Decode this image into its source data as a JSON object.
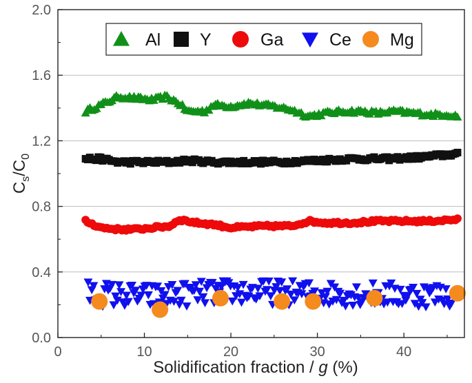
{
  "chart_data": {
    "type": "scatter",
    "title": "",
    "xlabel": {
      "prefix": "Solidification fraction / ",
      "var": "g",
      "suffix": " (%)"
    },
    "ylabel": {
      "main": "C",
      "sub1": "s",
      "sep": "/C",
      "sub2": "0"
    },
    "xlim": [
      0,
      47
    ],
    "ylim": [
      0,
      2.0
    ],
    "x_ticks": [
      0,
      10,
      20,
      30,
      40
    ],
    "y_ticks": [
      0.0,
      0.4,
      0.8,
      1.2,
      1.6,
      2.0
    ],
    "x_tick_labels": [
      "0",
      "10",
      "20",
      "30",
      "40"
    ],
    "y_tick_labels": [
      "0.0",
      "0.4",
      "0.8",
      "1.2",
      "1.6",
      "2.0"
    ],
    "grid": "horizontal",
    "legend_position": "top-center",
    "series": [
      {
        "name": "Al",
        "marker": "triangle-up",
        "color": "#109018",
        "x_start": 3.2,
        "x_end": 46.2,
        "n": 170,
        "profile": [
          [
            3.2,
            1.38
          ],
          [
            5,
            1.42
          ],
          [
            7,
            1.47
          ],
          [
            9,
            1.46
          ],
          [
            11,
            1.45
          ],
          [
            12.5,
            1.47
          ],
          [
            14,
            1.43
          ],
          [
            15,
            1.38
          ],
          [
            17,
            1.38
          ],
          [
            18,
            1.42
          ],
          [
            20,
            1.41
          ],
          [
            22,
            1.43
          ],
          [
            25,
            1.41
          ],
          [
            27,
            1.39
          ],
          [
            29,
            1.35
          ],
          [
            31,
            1.37
          ],
          [
            33,
            1.38
          ],
          [
            35,
            1.38
          ],
          [
            37,
            1.37
          ],
          [
            39,
            1.38
          ],
          [
            41,
            1.37
          ],
          [
            43,
            1.36
          ],
          [
            45,
            1.36
          ],
          [
            46.2,
            1.35
          ]
        ],
        "jitter": 0.012
      },
      {
        "name": "Y",
        "marker": "square",
        "color": "#111111",
        "x_start": 3.2,
        "x_end": 46.2,
        "n": 175,
        "profile": [
          [
            3.2,
            1.09
          ],
          [
            5,
            1.09
          ],
          [
            7,
            1.07
          ],
          [
            10,
            1.07
          ],
          [
            13,
            1.07
          ],
          [
            15,
            1.08
          ],
          [
            18,
            1.07
          ],
          [
            22,
            1.07
          ],
          [
            26,
            1.07
          ],
          [
            30,
            1.08
          ],
          [
            34,
            1.09
          ],
          [
            38,
            1.09
          ],
          [
            42,
            1.1
          ],
          [
            44,
            1.11
          ],
          [
            46.2,
            1.12
          ]
        ],
        "jitter": 0.011
      },
      {
        "name": "Ga",
        "marker": "circle",
        "color": "#ee0a0a",
        "x_start": 3.2,
        "x_end": 46.2,
        "n": 175,
        "profile": [
          [
            3.2,
            0.71
          ],
          [
            5,
            0.67
          ],
          [
            7,
            0.66
          ],
          [
            9,
            0.66
          ],
          [
            11,
            0.67
          ],
          [
            13,
            0.68
          ],
          [
            14,
            0.72
          ],
          [
            16,
            0.7
          ],
          [
            18,
            0.69
          ],
          [
            20,
            0.67
          ],
          [
            24,
            0.68
          ],
          [
            27,
            0.68
          ],
          [
            29,
            0.71
          ],
          [
            31,
            0.7
          ],
          [
            34,
            0.7
          ],
          [
            37,
            0.71
          ],
          [
            40,
            0.71
          ],
          [
            43,
            0.71
          ],
          [
            46.2,
            0.72
          ]
        ],
        "jitter": 0.008
      },
      {
        "name": "Ce",
        "marker": "triangle-down",
        "color": "#1010ee",
        "x_start": 3.5,
        "x_end": 45.5,
        "n": 200,
        "profile": [
          [
            3.5,
            0.27
          ],
          [
            10,
            0.25
          ],
          [
            20,
            0.28
          ],
          [
            30,
            0.27
          ],
          [
            40,
            0.26
          ],
          [
            45.5,
            0.26
          ]
        ],
        "jitter": 0.075
      },
      {
        "name": "Mg",
        "marker": "circle-large",
        "color": "#f58a1f",
        "x": [
          4.8,
          11.8,
          18.8,
          25.9,
          29.5,
          36.6,
          46.2
        ],
        "y": [
          0.22,
          0.17,
          0.24,
          0.22,
          0.22,
          0.24,
          0.27
        ]
      }
    ]
  }
}
